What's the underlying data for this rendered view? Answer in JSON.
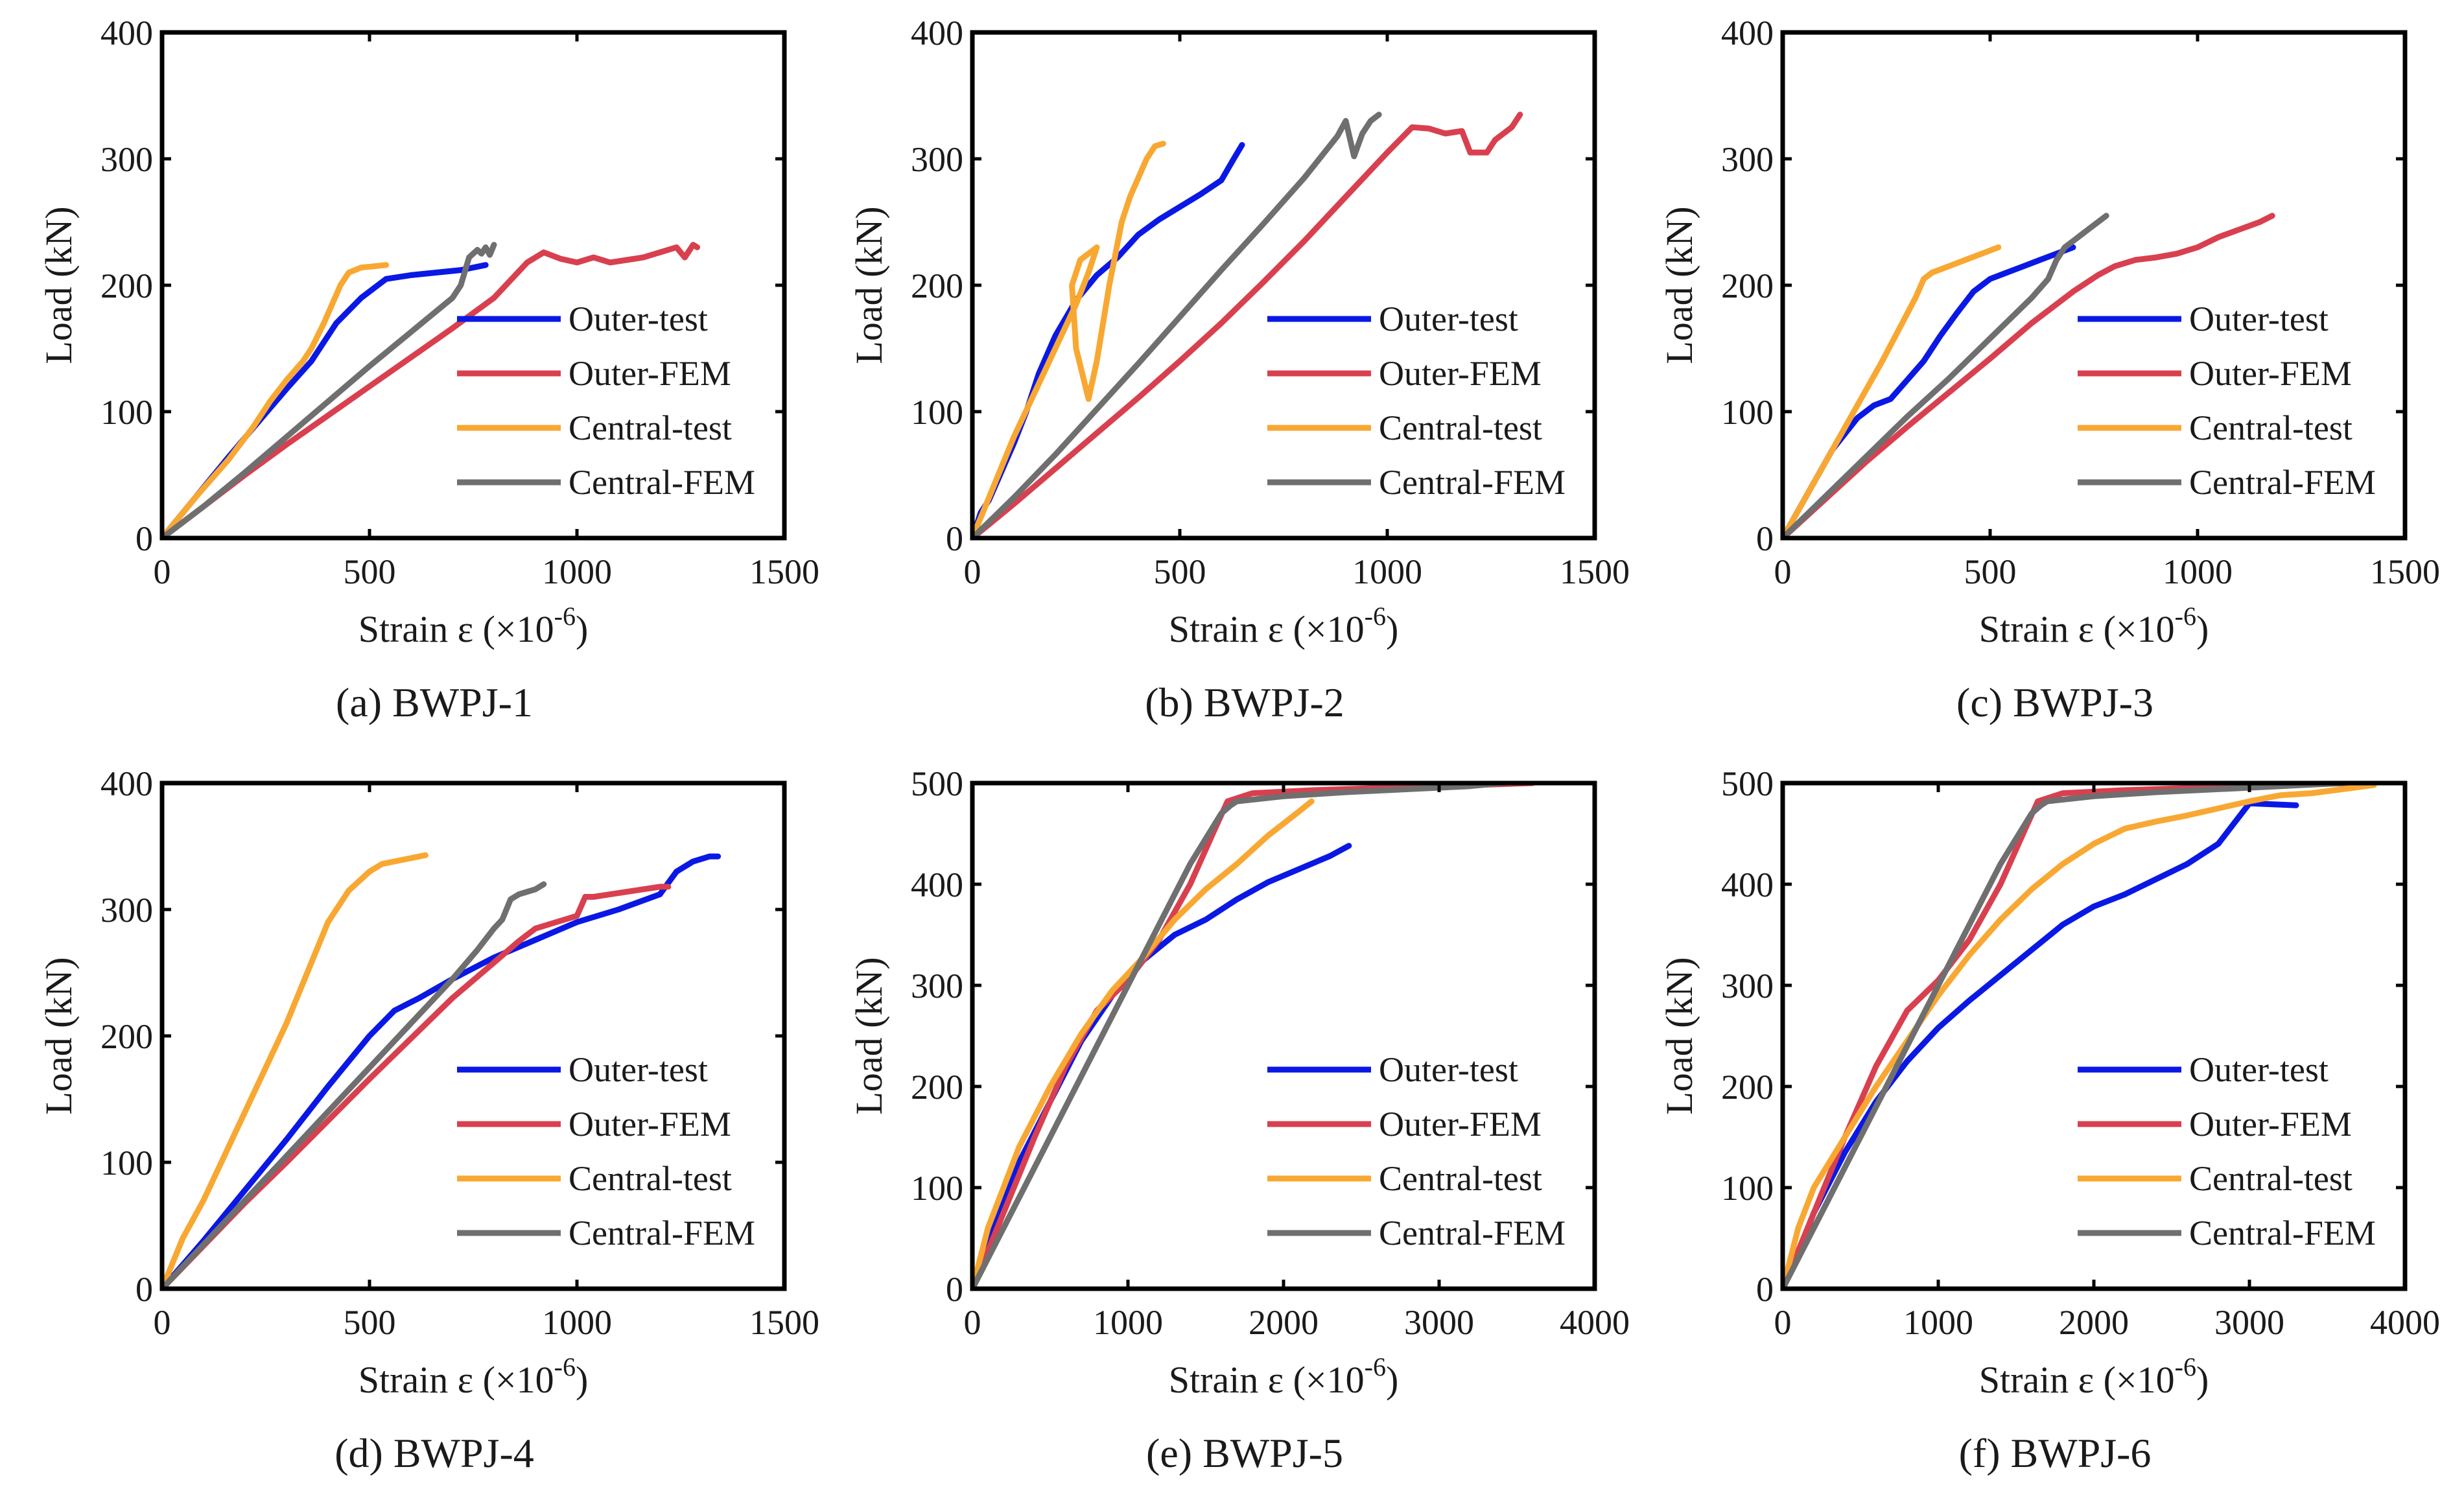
{
  "figure": {
    "ylabel": "Load (kN)",
    "xlabel_main": "Strain ε (×10",
    "xlabel_exp": "-6",
    "xlabel_close": ")"
  },
  "colors": {
    "Outer-test": "#0a18e6",
    "Outer-FEM": "#d9404f",
    "Central-test": "#f8a832",
    "Central-FEM": "#6f6f6f"
  },
  "legend": [
    "Outer-test",
    "Outer-FEM",
    "Central-test",
    "Central-FEM"
  ],
  "chart_data": [
    {
      "type": "line",
      "id": "a",
      "caption": "(a) BWPJ-1",
      "xlim": [
        0,
        1500
      ],
      "ylim": [
        0,
        400
      ],
      "xticks": [
        0,
        500,
        1000,
        1500
      ],
      "yticks": [
        0,
        100,
        200,
        300,
        400
      ],
      "series": [
        {
          "name": "Outer-test",
          "x": [
            0,
            80,
            160,
            240,
            300,
            360,
            420,
            480,
            540,
            600,
            660,
            720,
            780
          ],
          "y": [
            0,
            32,
            64,
            95,
            118,
            140,
            170,
            190,
            205,
            208,
            210,
            212,
            216
          ]
        },
        {
          "name": "Outer-FEM",
          "x": [
            0,
            100,
            200,
            300,
            400,
            500,
            600,
            700,
            800,
            880,
            920,
            960,
            1000,
            1040,
            1080,
            1120,
            1160,
            1200,
            1240,
            1260,
            1280,
            1290
          ],
          "y": [
            0,
            25,
            50,
            74,
            97,
            120,
            143,
            166,
            190,
            218,
            226,
            221,
            218,
            222,
            218,
            220,
            222,
            226,
            230,
            222,
            232,
            230
          ]
        },
        {
          "name": "Central-test",
          "x": [
            0,
            80,
            160,
            220,
            260,
            300,
            340,
            360,
            390,
            410,
            430,
            450,
            480,
            510,
            540
          ],
          "y": [
            0,
            32,
            62,
            88,
            108,
            125,
            140,
            150,
            170,
            185,
            200,
            210,
            214,
            215,
            216
          ]
        },
        {
          "name": "Central-FEM",
          "x": [
            0,
            100,
            200,
            300,
            400,
            500,
            600,
            700,
            720,
            740,
            760,
            770,
            780,
            790,
            800
          ],
          "y": [
            0,
            25,
            52,
            80,
            108,
            136,
            163,
            190,
            200,
            222,
            228,
            225,
            230,
            224,
            232
          ]
        }
      ]
    },
    {
      "type": "line",
      "id": "b",
      "caption": "(b) BWPJ-2",
      "xlim": [
        0,
        1500
      ],
      "ylim": [
        0,
        400
      ],
      "xticks": [
        0,
        500,
        1000,
        1500
      ],
      "yticks": [
        0,
        100,
        200,
        300,
        400
      ],
      "series": [
        {
          "name": "Outer-test",
          "x": [
            0,
            20,
            40,
            60,
            80,
            100,
            130,
            160,
            200,
            250,
            300,
            350,
            400,
            450,
            500,
            550,
            600,
            630,
            650
          ],
          "y": [
            0,
            20,
            30,
            45,
            60,
            75,
            100,
            130,
            160,
            188,
            208,
            222,
            240,
            252,
            262,
            272,
            283,
            300,
            311
          ]
        },
        {
          "name": "Outer-FEM",
          "x": [
            0,
            100,
            200,
            300,
            400,
            500,
            600,
            700,
            800,
            900,
            1000,
            1060,
            1100,
            1140,
            1180,
            1200,
            1240,
            1260,
            1300,
            1320
          ],
          "y": [
            0,
            27,
            55,
            83,
            111,
            140,
            170,
            202,
            235,
            270,
            305,
            325,
            324,
            320,
            322,
            305,
            305,
            315,
            325,
            335
          ]
        },
        {
          "name": "Central-test",
          "x": [
            0,
            50,
            100,
            150,
            200,
            250,
            280,
            300,
            260,
            240,
            250,
            280,
            300,
            330,
            360,
            380,
            400,
            420,
            440,
            460
          ],
          "y": [
            0,
            40,
            80,
            115,
            150,
            185,
            210,
            230,
            220,
            200,
            150,
            110,
            140,
            200,
            250,
            270,
            285,
            300,
            310,
            312
          ]
        },
        {
          "name": "Central-FEM",
          "x": [
            0,
            100,
            200,
            300,
            400,
            500,
            600,
            700,
            800,
            880,
            900,
            920,
            940,
            960,
            980
          ],
          "y": [
            0,
            32,
            66,
            102,
            138,
            175,
            212,
            248,
            285,
            318,
            330,
            302,
            320,
            330,
            335
          ]
        }
      ]
    },
    {
      "type": "line",
      "id": "c",
      "caption": "(c) BWPJ-3",
      "xlim": [
        0,
        1500
      ],
      "ylim": [
        0,
        400
      ],
      "xticks": [
        0,
        500,
        1000,
        1500
      ],
      "yticks": [
        0,
        100,
        200,
        300,
        400
      ],
      "series": [
        {
          "name": "Outer-test",
          "x": [
            0,
            60,
            120,
            180,
            220,
            260,
            300,
            340,
            380,
            420,
            460,
            500,
            540,
            580,
            620,
            660,
            700
          ],
          "y": [
            0,
            35,
            70,
            95,
            105,
            110,
            125,
            140,
            160,
            178,
            195,
            205,
            210,
            215,
            220,
            225,
            230
          ]
        },
        {
          "name": "Outer-FEM",
          "x": [
            0,
            100,
            200,
            300,
            400,
            500,
            600,
            700,
            760,
            800,
            850,
            900,
            950,
            1000,
            1050,
            1100,
            1150,
            1180
          ],
          "y": [
            0,
            30,
            60,
            88,
            115,
            142,
            170,
            195,
            208,
            215,
            220,
            222,
            225,
            230,
            238,
            244,
            250,
            255
          ]
        },
        {
          "name": "Central-test",
          "x": [
            0,
            60,
            120,
            180,
            240,
            280,
            320,
            340,
            360,
            400,
            440,
            480,
            520
          ],
          "y": [
            0,
            35,
            70,
            105,
            140,
            165,
            190,
            205,
            210,
            215,
            220,
            225,
            230
          ]
        },
        {
          "name": "Central-FEM",
          "x": [
            0,
            100,
            200,
            300,
            400,
            500,
            600,
            640,
            660,
            680,
            700,
            720,
            740,
            760,
            780
          ],
          "y": [
            0,
            32,
            64,
            96,
            126,
            158,
            190,
            205,
            220,
            230,
            235,
            240,
            245,
            250,
            255
          ]
        }
      ]
    },
    {
      "type": "line",
      "id": "d",
      "caption": "(d) BWPJ-4",
      "xlim": [
        0,
        1500
      ],
      "ylim": [
        0,
        400
      ],
      "xticks": [
        0,
        500,
        1000,
        1500
      ],
      "yticks": [
        0,
        100,
        200,
        300,
        400
      ],
      "series": [
        {
          "name": "Outer-test",
          "x": [
            0,
            100,
            200,
            300,
            400,
            500,
            560,
            620,
            700,
            800,
            900,
            1000,
            1100,
            1200,
            1240,
            1280,
            1320,
            1340
          ],
          "y": [
            0,
            38,
            78,
            118,
            160,
            200,
            220,
            230,
            245,
            262,
            276,
            290,
            300,
            312,
            330,
            338,
            342,
            342
          ]
        },
        {
          "name": "Outer-FEM",
          "x": [
            0,
            100,
            200,
            300,
            400,
            500,
            600,
            700,
            800,
            860,
            900,
            950,
            1000,
            1020,
            1040,
            1080,
            1120,
            1160,
            1200,
            1220
          ],
          "y": [
            0,
            34,
            68,
            100,
            133,
            166,
            198,
            230,
            258,
            275,
            285,
            290,
            295,
            310,
            310,
            312,
            314,
            316,
            318,
            318
          ]
        },
        {
          "name": "Central-test",
          "x": [
            0,
            50,
            100,
            150,
            200,
            250,
            300,
            350,
            400,
            450,
            500,
            530,
            560,
            590,
            620,
            635
          ],
          "y": [
            0,
            40,
            70,
            105,
            140,
            175,
            210,
            250,
            290,
            315,
            330,
            336,
            338,
            340,
            342,
            343
          ]
        },
        {
          "name": "Central-FEM",
          "x": [
            0,
            100,
            200,
            300,
            400,
            500,
            600,
            700,
            760,
            800,
            820,
            830,
            840,
            860,
            880,
            900,
            920
          ],
          "y": [
            0,
            35,
            70,
            105,
            140,
            175,
            210,
            245,
            268,
            285,
            292,
            300,
            308,
            312,
            314,
            316,
            320
          ]
        }
      ]
    },
    {
      "type": "line",
      "id": "e",
      "caption": "(e) BWPJ-5",
      "xlim": [
        0,
        4000
      ],
      "ylim": [
        0,
        500
      ],
      "xticks": [
        0,
        1000,
        2000,
        3000,
        4000
      ],
      "yticks": [
        0,
        100,
        200,
        300,
        400,
        500
      ],
      "series": [
        {
          "name": "Outer-test",
          "x": [
            0,
            100,
            300,
            500,
            700,
            900,
            1100,
            1300,
            1500,
            1700,
            1900,
            2100,
            2300,
            2420
          ],
          "y": [
            0,
            50,
            125,
            185,
            245,
            290,
            325,
            350,
            365,
            385,
            402,
            415,
            428,
            438
          ]
        },
        {
          "name": "Outer-FEM",
          "x": [
            0,
            200,
            400,
            600,
            800,
            1000,
            1200,
            1400,
            1560,
            1640,
            1800,
            2200,
            2600,
            3000,
            3400,
            3600
          ],
          "y": [
            0,
            75,
            150,
            220,
            275,
            305,
            345,
            400,
            455,
            482,
            490,
            493,
            495,
            497,
            499,
            500
          ]
        },
        {
          "name": "Central-test",
          "x": [
            0,
            100,
            300,
            500,
            700,
            900,
            1100,
            1300,
            1500,
            1700,
            1900,
            2100,
            2180
          ],
          "y": [
            0,
            60,
            140,
            200,
            252,
            295,
            328,
            365,
            395,
            420,
            448,
            472,
            482
          ]
        },
        {
          "name": "Central-FEM",
          "x": [
            0,
            200,
            400,
            600,
            800,
            1000,
            1200,
            1400,
            1600,
            1660,
            1700,
            2000,
            2400,
            2800,
            3200,
            3400
          ],
          "y": [
            0,
            60,
            120,
            180,
            240,
            300,
            360,
            420,
            470,
            478,
            482,
            487,
            491,
            494,
            497,
            500
          ]
        }
      ]
    },
    {
      "type": "line",
      "id": "f",
      "caption": "(f) BWPJ-6",
      "xlim": [
        0,
        4000
      ],
      "ylim": [
        0,
        500
      ],
      "xticks": [
        0,
        1000,
        2000,
        3000,
        4000
      ],
      "yticks": [
        0,
        100,
        200,
        300,
        400,
        500
      ],
      "series": [
        {
          "name": "Outer-test",
          "x": [
            0,
            100,
            200,
            400,
            600,
            800,
            1000,
            1200,
            1400,
            1600,
            1800,
            2000,
            2200,
            2400,
            2600,
            2800,
            2900,
            3000,
            3300
          ],
          "y": [
            0,
            35,
            75,
            135,
            185,
            225,
            258,
            285,
            310,
            335,
            360,
            378,
            390,
            405,
            420,
            440,
            460,
            480,
            478
          ]
        },
        {
          "name": "Outer-FEM",
          "x": [
            0,
            200,
            400,
            600,
            800,
            1000,
            1200,
            1400,
            1560,
            1640,
            1800,
            2200,
            2600,
            3000,
            3400,
            3700
          ],
          "y": [
            0,
            75,
            150,
            220,
            275,
            305,
            345,
            400,
            455,
            482,
            490,
            493,
            495,
            497,
            499,
            500
          ]
        },
        {
          "name": "Central-test",
          "x": [
            0,
            100,
            200,
            400,
            600,
            800,
            1000,
            1200,
            1400,
            1600,
            1800,
            2000,
            2200,
            2400,
            2600,
            2800,
            3000,
            3200,
            3400,
            3600,
            3800
          ],
          "y": [
            0,
            60,
            100,
            150,
            200,
            245,
            290,
            330,
            365,
            395,
            420,
            440,
            455,
            462,
            468,
            475,
            482,
            488,
            490,
            494,
            498
          ]
        },
        {
          "name": "Central-FEM",
          "x": [
            0,
            200,
            400,
            600,
            800,
            1000,
            1200,
            1400,
            1600,
            1660,
            1700,
            2000,
            2400,
            2800,
            3200,
            3600
          ],
          "y": [
            0,
            60,
            120,
            180,
            240,
            300,
            360,
            420,
            470,
            478,
            482,
            487,
            491,
            494,
            497,
            500
          ]
        }
      ]
    }
  ]
}
